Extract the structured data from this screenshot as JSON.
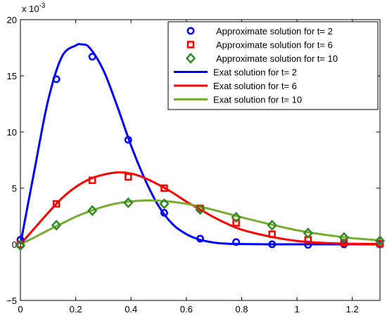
{
  "chart_data": {
    "type": "line",
    "xlim": [
      0,
      1.3
    ],
    "ylim": [
      -5,
      20
    ],
    "y_multiplier_label": "x 10",
    "y_multiplier_exponent": "-3",
    "xticks": [
      0,
      0.2,
      0.4,
      0.6,
      0.8,
      1.0,
      1.2
    ],
    "xtick_labels": [
      "0",
      "0.2",
      "0.4",
      "0.6",
      "0.8",
      "1",
      "1.2"
    ],
    "yticks": [
      -5,
      0,
      5,
      10,
      15,
      20
    ],
    "ytick_labels": [
      "−5",
      "0",
      "5",
      "10",
      "15",
      "20"
    ],
    "grid": false,
    "legend_position": "top-right",
    "series": [
      {
        "name": "Approximate solution for t= 2",
        "kind": "marker",
        "marker": "circle",
        "color": "#0000ff",
        "x": [
          0,
          0.13,
          0.26,
          0.39,
          0.52,
          0.65,
          0.78,
          0.91,
          1.04,
          1.17,
          1.3
        ],
        "y": [
          0.4,
          14.7,
          16.7,
          9.3,
          2.8,
          0.5,
          0.2,
          0.0,
          -0.05,
          0.0,
          0.0
        ]
      },
      {
        "name": "Approximate solution for t= 6",
        "kind": "marker",
        "marker": "square",
        "color": "#ff0000",
        "x": [
          0,
          0.13,
          0.26,
          0.39,
          0.52,
          0.65,
          0.78,
          0.91,
          1.04,
          1.17,
          1.3
        ],
        "y": [
          0.0,
          3.6,
          5.7,
          6.0,
          5.0,
          3.2,
          1.9,
          0.9,
          0.4,
          0.15,
          0.05
        ]
      },
      {
        "name": "Approximate solution for t= 10",
        "kind": "marker",
        "marker": "diamond",
        "color": "#2e8b22",
        "x": [
          0,
          0.13,
          0.26,
          0.39,
          0.52,
          0.65,
          0.78,
          0.91,
          1.04,
          1.17,
          1.3
        ],
        "y": [
          -0.1,
          1.7,
          3.0,
          3.7,
          3.6,
          3.1,
          2.4,
          1.7,
          1.0,
          0.6,
          0.3
        ]
      },
      {
        "name": "Exat solution for t= 2",
        "kind": "line",
        "color": "#0000ff",
        "x": [
          0,
          0.05,
          0.1,
          0.15,
          0.2,
          0.22,
          0.25,
          0.3,
          0.35,
          0.4,
          0.45,
          0.5,
          0.55,
          0.6,
          0.65,
          0.7,
          0.75,
          0.8,
          0.9,
          1.0,
          1.1,
          1.2,
          1.3
        ],
        "y": [
          0.0,
          6.5,
          12.8,
          16.7,
          17.7,
          17.8,
          17.5,
          15.5,
          12.3,
          8.8,
          5.8,
          3.4,
          1.8,
          0.9,
          0.4,
          0.15,
          0.05,
          0.02,
          0.0,
          0.0,
          0.0,
          0.0,
          0.0
        ]
      },
      {
        "name": "Exat solution for t= 6",
        "kind": "line",
        "color": "#ff0000",
        "x": [
          0,
          0.05,
          0.1,
          0.15,
          0.2,
          0.25,
          0.3,
          0.35,
          0.4,
          0.45,
          0.5,
          0.55,
          0.6,
          0.65,
          0.7,
          0.75,
          0.8,
          0.9,
          1.0,
          1.1,
          1.2,
          1.3
        ],
        "y": [
          0.0,
          1.4,
          2.8,
          4.1,
          5.1,
          5.8,
          6.2,
          6.4,
          6.3,
          5.9,
          5.3,
          4.6,
          3.8,
          3.1,
          2.4,
          1.8,
          1.3,
          0.7,
          0.3,
          0.12,
          0.05,
          0.02
        ]
      },
      {
        "name": "Exat solution for t= 10",
        "kind": "line",
        "color": "#77ac30",
        "x": [
          0,
          0.05,
          0.1,
          0.15,
          0.2,
          0.25,
          0.3,
          0.35,
          0.4,
          0.45,
          0.5,
          0.55,
          0.6,
          0.65,
          0.7,
          0.8,
          0.9,
          1.0,
          1.1,
          1.2,
          1.3
        ],
        "y": [
          0.0,
          0.6,
          1.25,
          1.85,
          2.45,
          2.95,
          3.35,
          3.65,
          3.82,
          3.9,
          3.88,
          3.78,
          3.6,
          3.35,
          3.05,
          2.4,
          1.8,
          1.25,
          0.85,
          0.55,
          0.35
        ]
      }
    ]
  }
}
